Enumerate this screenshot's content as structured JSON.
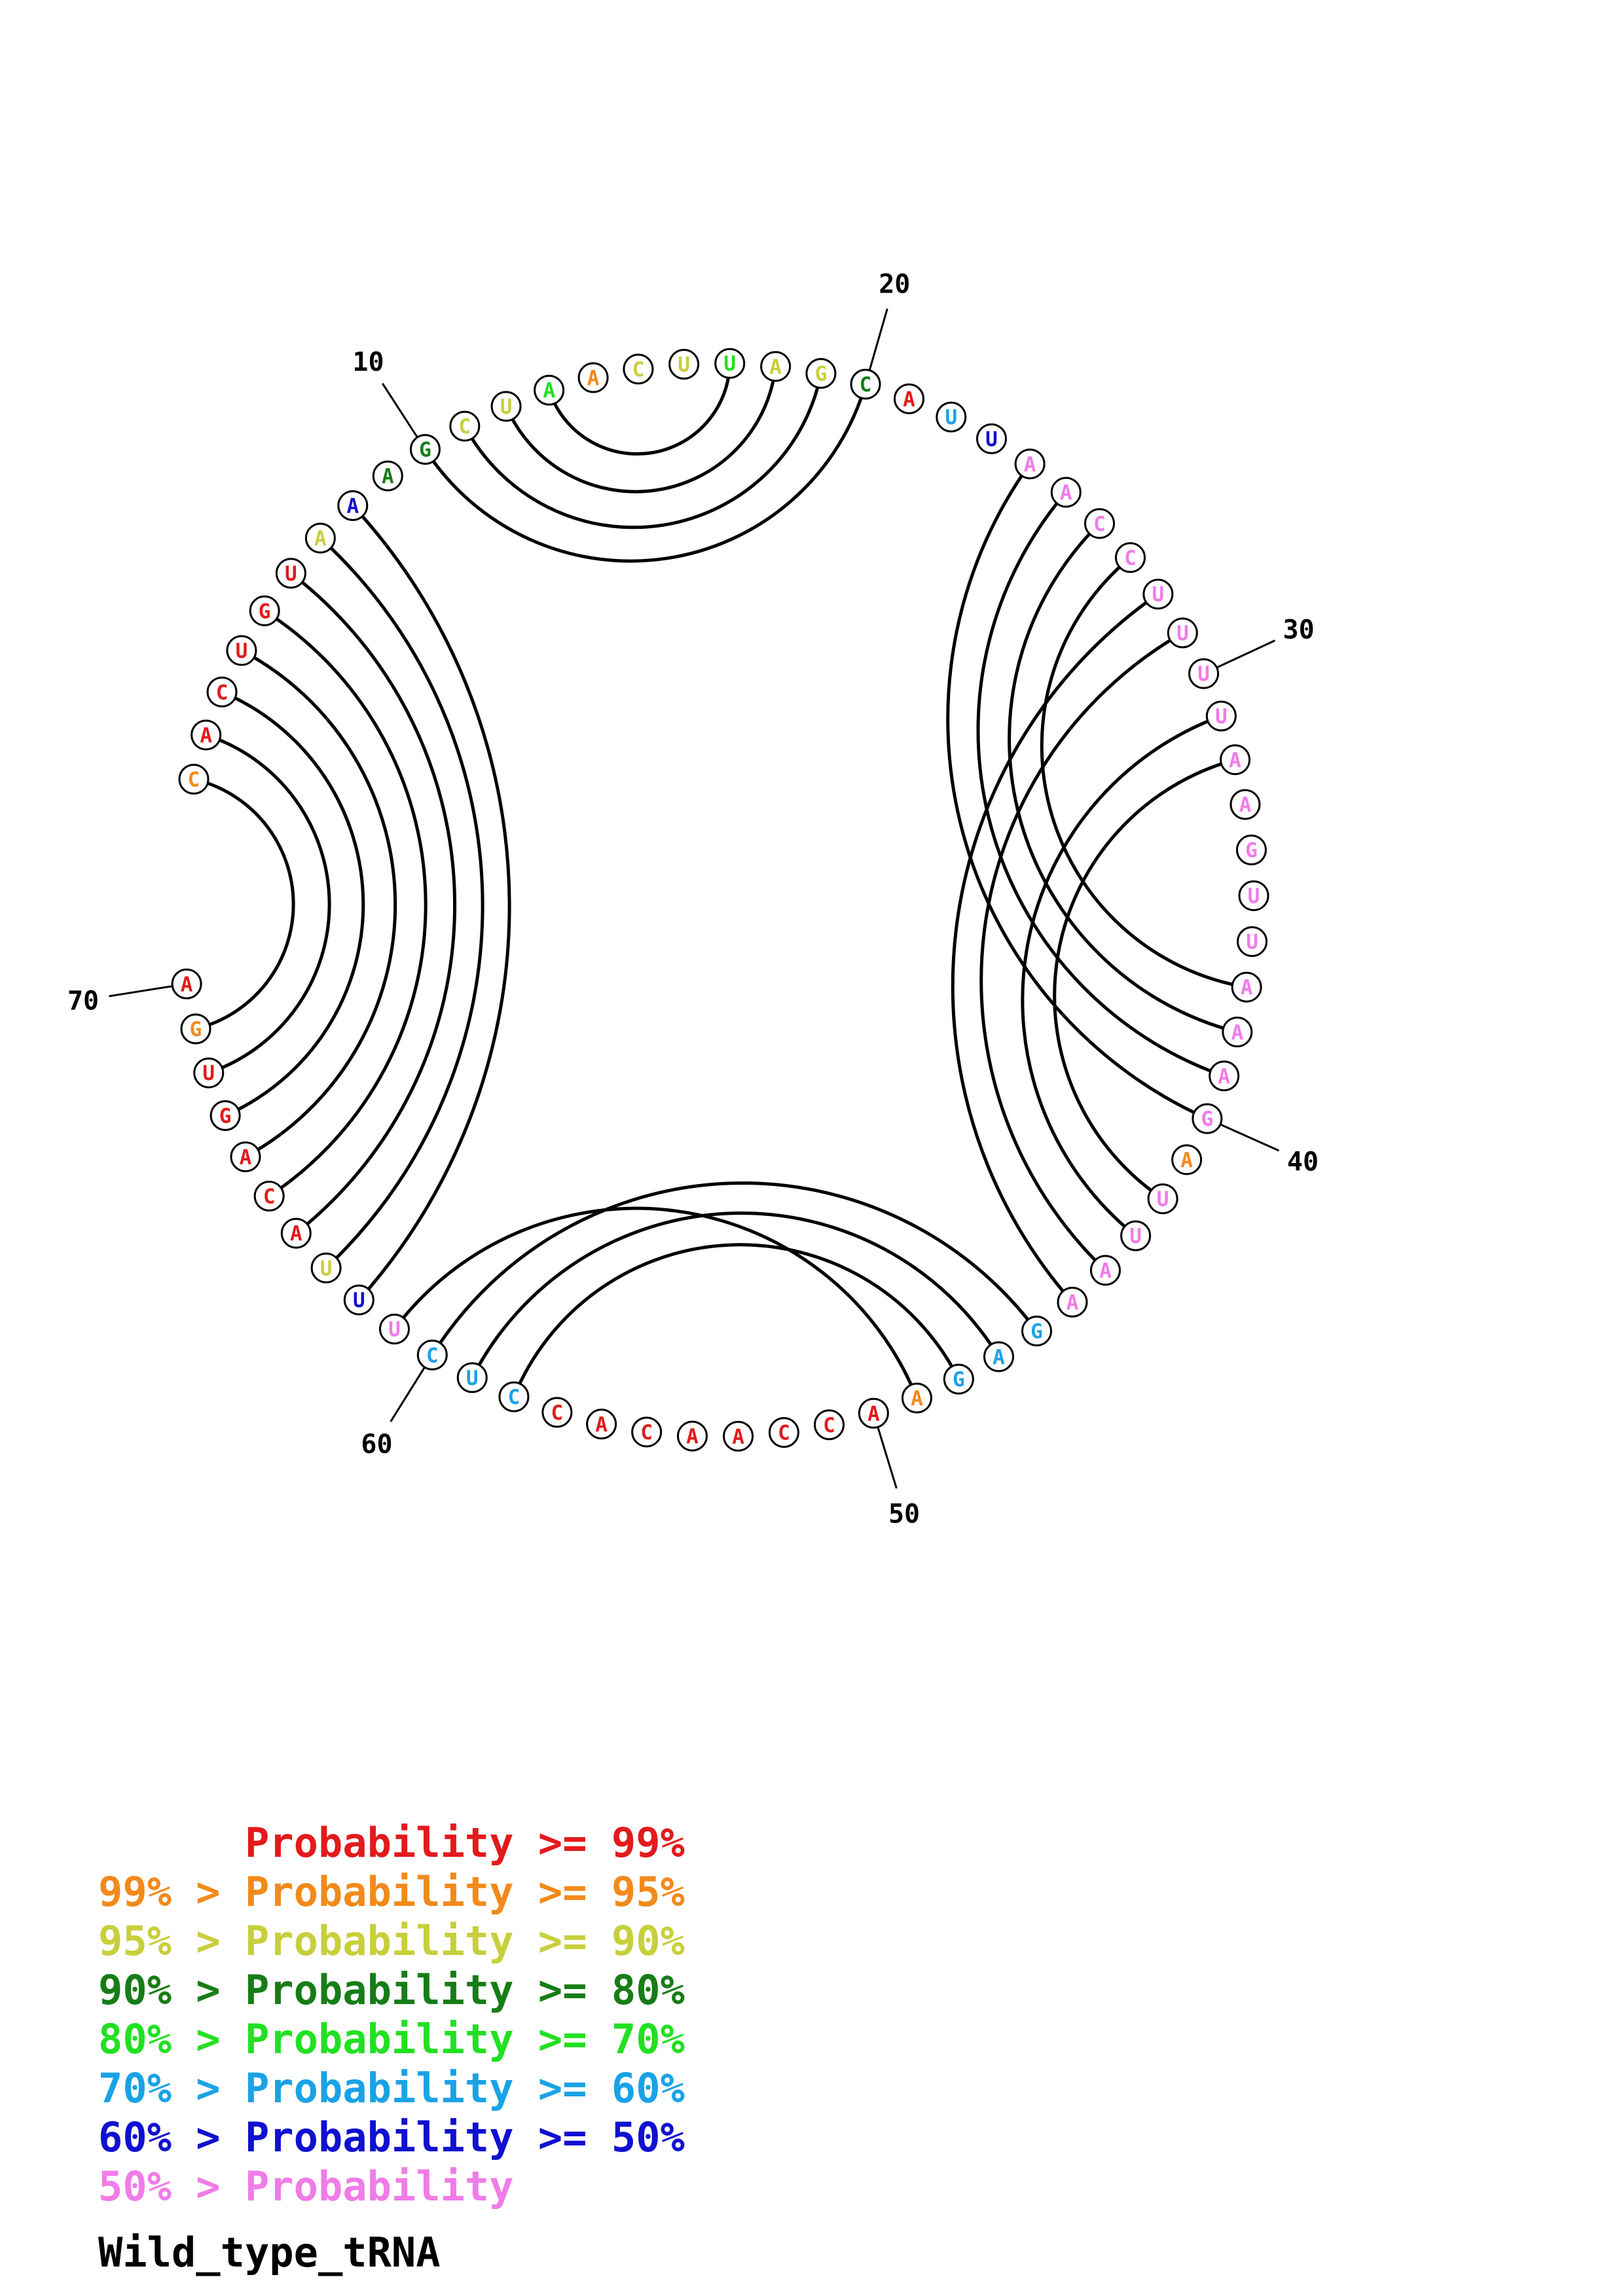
{
  "sequence_name": "Wild_type_tRNA",
  "colors": {
    "p99": "#e31a1c",
    "p95": "#f28a1b",
    "p90": "#c8cf3c",
    "p80": "#177d17",
    "p70": "#22e022",
    "p60": "#1aa2e6",
    "p50": "#1010d0",
    "plow": "#f07ce8"
  },
  "legend": [
    {
      "text": "      Probability >= 99%",
      "color_key": "p99"
    },
    {
      "text": "99% > Probability >= 95%",
      "color_key": "p95"
    },
    {
      "text": "95% > Probability >= 90%",
      "color_key": "p90"
    },
    {
      "text": "90% > Probability >= 80%",
      "color_key": "p80"
    },
    {
      "text": "80% > Probability >= 70%",
      "color_key": "p70"
    },
    {
      "text": "70% > Probability >= 60%",
      "color_key": "p60"
    },
    {
      "text": "60% > Probability >= 50%",
      "color_key": "p50"
    },
    {
      "text": "50% > Probability",
      "color_key": "plow"
    }
  ],
  "nucleotides": [
    {
      "n": 1,
      "base": "C",
      "c": "p95"
    },
    {
      "n": 2,
      "base": "A",
      "c": "p99"
    },
    {
      "n": 3,
      "base": "C",
      "c": "p99"
    },
    {
      "n": 4,
      "base": "U",
      "c": "p99"
    },
    {
      "n": 5,
      "base": "G",
      "c": "p99"
    },
    {
      "n": 6,
      "base": "U",
      "c": "p99"
    },
    {
      "n": 7,
      "base": "A",
      "c": "p90"
    },
    {
      "n": 8,
      "base": "A",
      "c": "p50"
    },
    {
      "n": 9,
      "base": "A",
      "c": "p80"
    },
    {
      "n": 10,
      "base": "G",
      "c": "p80"
    },
    {
      "n": 11,
      "base": "C",
      "c": "p90"
    },
    {
      "n": 12,
      "base": "U",
      "c": "p90"
    },
    {
      "n": 13,
      "base": "A",
      "c": "p70"
    },
    {
      "n": 14,
      "base": "A",
      "c": "p95"
    },
    {
      "n": 15,
      "base": "C",
      "c": "p90"
    },
    {
      "n": 16,
      "base": "U",
      "c": "p90"
    },
    {
      "n": 17,
      "base": "U",
      "c": "p70"
    },
    {
      "n": 18,
      "base": "A",
      "c": "p90"
    },
    {
      "n": 19,
      "base": "G",
      "c": "p90"
    },
    {
      "n": 20,
      "base": "C",
      "c": "p80"
    },
    {
      "n": 21,
      "base": "A",
      "c": "p99"
    },
    {
      "n": 22,
      "base": "U",
      "c": "p60"
    },
    {
      "n": 23,
      "base": "U",
      "c": "p50"
    },
    {
      "n": 24,
      "base": "A",
      "c": "plow"
    },
    {
      "n": 25,
      "base": "A",
      "c": "plow"
    },
    {
      "n": 26,
      "base": "C",
      "c": "plow"
    },
    {
      "n": 27,
      "base": "C",
      "c": "plow"
    },
    {
      "n": 28,
      "base": "U",
      "c": "plow"
    },
    {
      "n": 29,
      "base": "U",
      "c": "plow"
    },
    {
      "n": 30,
      "base": "U",
      "c": "plow"
    },
    {
      "n": 31,
      "base": "U",
      "c": "plow"
    },
    {
      "n": 32,
      "base": "A",
      "c": "plow"
    },
    {
      "n": 33,
      "base": "A",
      "c": "plow"
    },
    {
      "n": 34,
      "base": "G",
      "c": "plow"
    },
    {
      "n": 35,
      "base": "U",
      "c": "plow"
    },
    {
      "n": 36,
      "base": "U",
      "c": "plow"
    },
    {
      "n": 37,
      "base": "A",
      "c": "plow"
    },
    {
      "n": 38,
      "base": "A",
      "c": "plow"
    },
    {
      "n": 39,
      "base": "A",
      "c": "plow"
    },
    {
      "n": 40,
      "base": "G",
      "c": "plow"
    },
    {
      "n": 41,
      "base": "A",
      "c": "p95"
    },
    {
      "n": 42,
      "base": "U",
      "c": "plow"
    },
    {
      "n": 43,
      "base": "U",
      "c": "plow"
    },
    {
      "n": 44,
      "base": "A",
      "c": "plow"
    },
    {
      "n": 45,
      "base": "A",
      "c": "plow"
    },
    {
      "n": 46,
      "base": "G",
      "c": "p60"
    },
    {
      "n": 47,
      "base": "A",
      "c": "p60"
    },
    {
      "n": 48,
      "base": "G",
      "c": "p60"
    },
    {
      "n": 49,
      "base": "A",
      "c": "p95"
    },
    {
      "n": 50,
      "base": "A",
      "c": "p99"
    },
    {
      "n": 51,
      "base": "C",
      "c": "p99"
    },
    {
      "n": 52,
      "base": "C",
      "c": "p99"
    },
    {
      "n": 53,
      "base": "A",
      "c": "p99"
    },
    {
      "n": 54,
      "base": "A",
      "c": "p99"
    },
    {
      "n": 55,
      "base": "C",
      "c": "p99"
    },
    {
      "n": 56,
      "base": "A",
      "c": "p99"
    },
    {
      "n": 57,
      "base": "C",
      "c": "p99"
    },
    {
      "n": 58,
      "base": "C",
      "c": "p60"
    },
    {
      "n": 59,
      "base": "U",
      "c": "p60"
    },
    {
      "n": 60,
      "base": "C",
      "c": "p60"
    },
    {
      "n": 61,
      "base": "U",
      "c": "plow"
    },
    {
      "n": 62,
      "base": "U",
      "c": "p50"
    },
    {
      "n": 63,
      "base": "U",
      "c": "p90"
    },
    {
      "n": 64,
      "base": "A",
      "c": "p99"
    },
    {
      "n": 65,
      "base": "C",
      "c": "p99"
    },
    {
      "n": 66,
      "base": "A",
      "c": "p99"
    },
    {
      "n": 67,
      "base": "G",
      "c": "p99"
    },
    {
      "n": 68,
      "base": "U",
      "c": "p99"
    },
    {
      "n": 69,
      "base": "G",
      "c": "p95"
    },
    {
      "n": 70,
      "base": "A",
      "c": "p99"
    }
  ],
  "pairs": [
    [
      1,
      69
    ],
    [
      2,
      68
    ],
    [
      3,
      67
    ],
    [
      4,
      66
    ],
    [
      5,
      65
    ],
    [
      6,
      64
    ],
    [
      7,
      63
    ],
    [
      8,
      62
    ],
    [
      10,
      20
    ],
    [
      11,
      19
    ],
    [
      12,
      18
    ],
    [
      13,
      17
    ],
    [
      24,
      40
    ],
    [
      25,
      39
    ],
    [
      26,
      38
    ],
    [
      27,
      37
    ],
    [
      28,
      45
    ],
    [
      29,
      44
    ],
    [
      31,
      43
    ],
    [
      32,
      42
    ],
    [
      46,
      60
    ],
    [
      47,
      59
    ],
    [
      48,
      58
    ],
    [
      49,
      61
    ]
  ],
  "ticks": [
    {
      "label": "10",
      "nt": 10
    },
    {
      "label": "20",
      "nt": 20
    },
    {
      "label": "30",
      "nt": 30
    },
    {
      "label": "40",
      "nt": 40
    },
    {
      "label": "50",
      "nt": 50
    },
    {
      "label": "60",
      "nt": 60
    },
    {
      "label": "70",
      "nt": 70
    }
  ]
}
